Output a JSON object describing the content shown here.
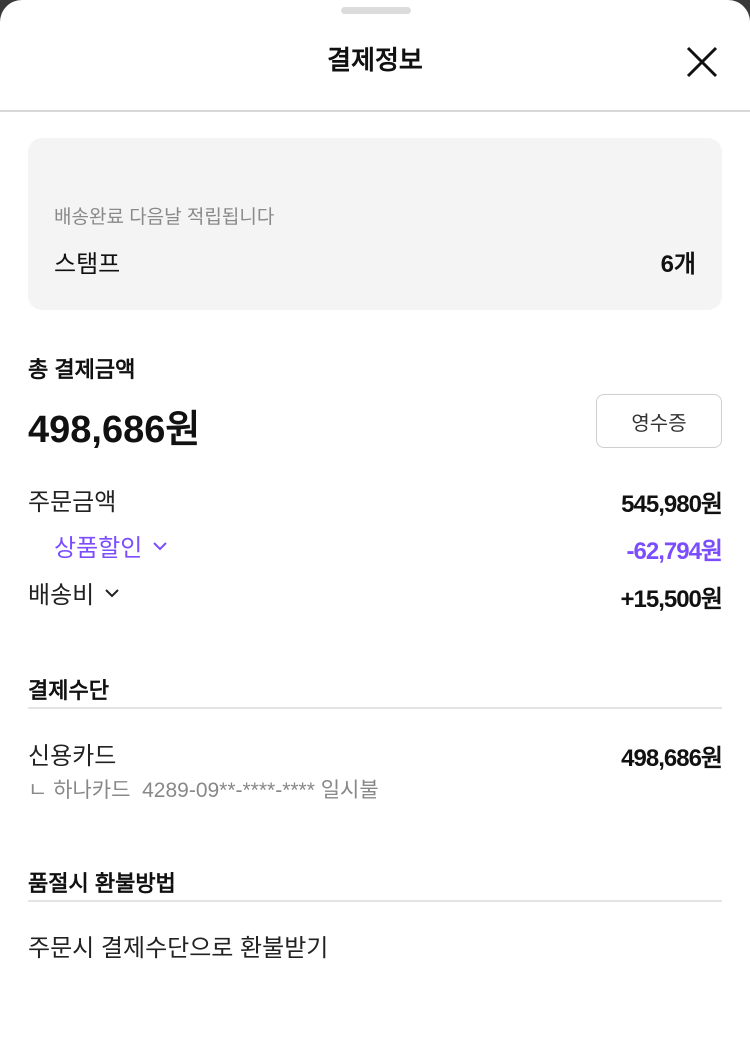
{
  "header": {
    "title": "결제정보",
    "close_icon": "close-icon"
  },
  "stamp_card": {
    "note": "배송완료 다음날 적립됩니다",
    "label": "스탬프",
    "value": "6개"
  },
  "total": {
    "label": "총 결제금액",
    "amount": "498,686원",
    "receipt_button": "영수증"
  },
  "breakdown": {
    "order_amount": {
      "label": "주문금액",
      "value": "545,980원"
    },
    "discount": {
      "label": "상품할인",
      "value": "-62,794원"
    },
    "shipping": {
      "label": "배송비",
      "value": "+15,500원"
    }
  },
  "payment_method": {
    "title": "결제수단",
    "method": "신용카드",
    "amount": "498,686원",
    "detail": "ㄴ 하나카드  4289-09**-****-**** 일시불"
  },
  "refund": {
    "title": "품절시 환불방법",
    "value": "주문시 결제수단으로 환불받기"
  },
  "colors": {
    "accent": "#7b4dff",
    "card_bg": "#f4f4f4"
  }
}
